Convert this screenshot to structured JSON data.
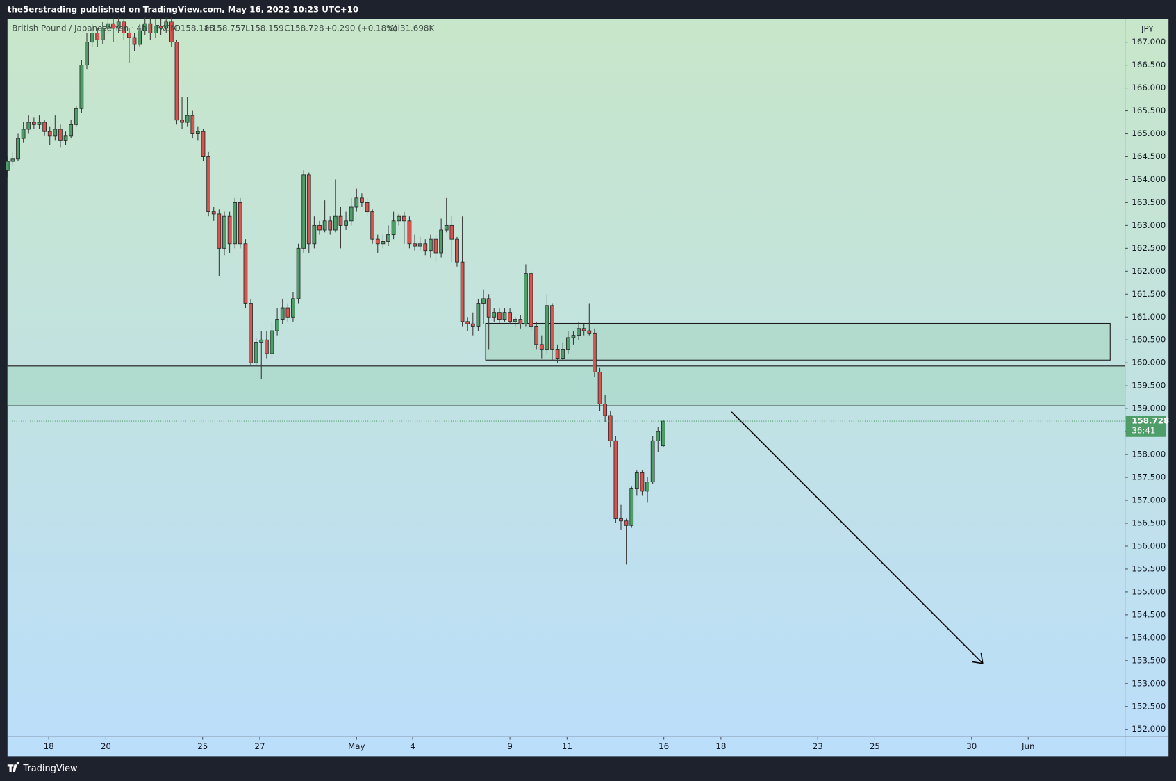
{
  "publisher": "the5erstrading published on TradingView.com, May 16, 2022 10:23 UTC+10",
  "brand": "TradingView",
  "chart_data": {
    "type": "candlestick",
    "title": "British Pound / Japanese Yen · 4h · FXCM",
    "ohlc_labels": [
      "O158.188",
      "H158.757",
      "L158.159",
      "C158.728",
      "+0.290 (+0.18%)",
      "Vol31.698K"
    ],
    "currency": "JPY",
    "countdown": "36:41",
    "up_color": "#4f9e69",
    "down_color": "#d9534f",
    "grid": false,
    "open": [
      164.2,
      164.4,
      164.45,
      164.9,
      165.1,
      165.25,
      165.2,
      165.25,
      165.05,
      164.95,
      165.1,
      164.85,
      164.95,
      165.2,
      165.55,
      166.5,
      167.0,
      167.2,
      167.05,
      167.3,
      167.4,
      167.3,
      167.45,
      167.2,
      167.1,
      166.95,
      167.25,
      167.4,
      167.2,
      167.35,
      167.3,
      167.45,
      167.0,
      165.3,
      165.25,
      165.4,
      165.0,
      165.05,
      164.5,
      163.3,
      163.25,
      162.5,
      163.2,
      162.6,
      163.5,
      162.6,
      161.3,
      160.0,
      160.45,
      160.5,
      160.2,
      160.7,
      160.95,
      161.2,
      161.0,
      161.4,
      162.5,
      164.1,
      162.6,
      163.0,
      162.9,
      163.1,
      162.9,
      163.2,
      163.0,
      163.1,
      163.4,
      163.6,
      163.5,
      163.3,
      162.7,
      162.6,
      162.65,
      162.8,
      163.1,
      163.2,
      163.1,
      162.6,
      162.55,
      162.6,
      162.45,
      162.7,
      162.4,
      162.9,
      163.0,
      162.7,
      162.2,
      160.9,
      160.85,
      160.8,
      161.3,
      161.4,
      161.0,
      161.1,
      160.95,
      161.1,
      160.9,
      160.95,
      160.85,
      161.95,
      160.8,
      160.4,
      160.3,
      161.25,
      160.3,
      160.1,
      160.3,
      160.55,
      160.6,
      160.75,
      160.7,
      160.65,
      159.8,
      159.1,
      158.85,
      158.3,
      156.6,
      156.55,
      156.45,
      157.25,
      157.6,
      157.2,
      157.4,
      158.3,
      158.188
    ],
    "high": [
      164.5,
      164.6,
      165.0,
      165.25,
      165.4,
      165.35,
      165.4,
      165.3,
      165.15,
      165.4,
      165.2,
      165.05,
      165.3,
      165.6,
      166.6,
      167.2,
      167.4,
      167.3,
      167.45,
      167.55,
      167.55,
      167.55,
      167.55,
      167.3,
      167.2,
      167.4,
      167.55,
      167.55,
      167.5,
      167.5,
      167.55,
      167.55,
      167.05,
      165.8,
      165.8,
      165.5,
      165.15,
      165.1,
      164.6,
      163.4,
      163.35,
      163.3,
      163.3,
      163.6,
      163.6,
      162.7,
      161.4,
      160.55,
      160.7,
      160.7,
      160.9,
      161.2,
      161.4,
      161.3,
      161.55,
      162.6,
      164.2,
      164.15,
      163.2,
      163.1,
      163.55,
      163.2,
      164.0,
      163.4,
      163.3,
      163.6,
      163.8,
      163.7,
      163.6,
      163.35,
      162.8,
      162.8,
      163.0,
      163.3,
      163.25,
      163.3,
      163.2,
      162.8,
      162.75,
      162.7,
      162.8,
      162.8,
      163.15,
      163.6,
      163.2,
      162.75,
      163.2,
      161.0,
      161.1,
      161.4,
      161.6,
      161.5,
      161.2,
      161.2,
      161.2,
      161.2,
      161.0,
      161.05,
      162.15,
      162.0,
      160.9,
      160.6,
      161.5,
      161.3,
      160.4,
      160.45,
      160.7,
      160.7,
      160.9,
      160.85,
      161.3,
      160.75,
      159.9,
      159.3,
      158.95,
      158.4,
      156.9,
      156.6,
      157.3,
      157.65,
      157.65,
      157.5,
      158.4,
      158.6,
      158.757
    ],
    "low": [
      164.05,
      164.3,
      164.4,
      164.8,
      165.0,
      165.1,
      165.1,
      164.95,
      164.75,
      164.85,
      164.7,
      164.75,
      164.9,
      165.15,
      165.45,
      166.4,
      166.9,
      166.9,
      166.95,
      167.2,
      167.0,
      167.2,
      167.05,
      166.55,
      166.8,
      166.9,
      167.15,
      167.05,
      167.1,
      167.15,
      167.2,
      166.9,
      165.2,
      165.1,
      165.15,
      164.9,
      164.85,
      164.4,
      163.2,
      163.1,
      161.9,
      162.35,
      162.4,
      162.5,
      162.5,
      161.2,
      159.95,
      159.95,
      159.65,
      160.1,
      160.1,
      160.6,
      160.85,
      160.9,
      160.9,
      161.3,
      162.4,
      162.4,
      162.5,
      162.8,
      162.85,
      162.8,
      162.85,
      162.5,
      162.9,
      163.0,
      163.3,
      163.4,
      163.2,
      162.6,
      162.4,
      162.5,
      162.55,
      162.7,
      163.0,
      162.6,
      162.5,
      162.45,
      162.45,
      162.35,
      162.3,
      162.2,
      162.3,
      162.85,
      162.2,
      162.1,
      160.8,
      160.7,
      160.6,
      160.7,
      160.85,
      160.3,
      160.9,
      160.85,
      160.9,
      160.85,
      160.8,
      160.75,
      160.8,
      160.7,
      160.3,
      160.1,
      160.2,
      160.05,
      160.0,
      160.05,
      160.2,
      160.4,
      160.5,
      160.6,
      160.6,
      159.7,
      158.95,
      158.7,
      158.15,
      156.5,
      156.35,
      155.6,
      156.4,
      157.1,
      157.1,
      156.95,
      157.35,
      158.05,
      158.159
    ],
    "close": [
      164.4,
      164.45,
      164.9,
      165.1,
      165.25,
      165.2,
      165.25,
      165.05,
      164.95,
      165.1,
      164.85,
      164.95,
      165.2,
      165.55,
      166.5,
      167.0,
      167.2,
      167.05,
      167.3,
      167.4,
      167.3,
      167.45,
      167.2,
      167.1,
      166.95,
      167.25,
      167.4,
      167.2,
      167.35,
      167.3,
      167.45,
      167.0,
      165.3,
      165.25,
      165.4,
      165.0,
      165.05,
      164.5,
      163.3,
      163.25,
      162.5,
      163.2,
      162.6,
      163.5,
      162.6,
      161.3,
      160.0,
      160.45,
      160.5,
      160.2,
      160.7,
      160.95,
      161.2,
      161.0,
      161.4,
      162.5,
      164.1,
      162.6,
      163.0,
      162.9,
      163.1,
      162.9,
      163.2,
      163.0,
      163.1,
      163.4,
      163.6,
      163.5,
      163.3,
      162.7,
      162.6,
      162.65,
      162.8,
      163.1,
      163.2,
      163.1,
      162.6,
      162.55,
      162.6,
      162.45,
      162.7,
      162.4,
      162.9,
      163.0,
      162.7,
      162.2,
      160.9,
      160.85,
      160.8,
      161.3,
      161.4,
      161.0,
      161.1,
      160.95,
      161.1,
      160.9,
      160.95,
      160.85,
      161.95,
      160.8,
      160.4,
      160.3,
      161.25,
      160.3,
      160.1,
      160.3,
      160.55,
      160.6,
      160.75,
      160.7,
      160.65,
      159.8,
      159.1,
      158.85,
      158.3,
      156.6,
      156.55,
      156.45,
      157.25,
      157.6,
      157.2,
      157.4,
      158.3,
      158.5,
      158.728
    ],
    "xlim": [
      0,
      211.3
    ],
    "xticks": [
      {
        "value": 7.8,
        "label": "18"
      },
      {
        "value": 18.6,
        "label": "20"
      },
      {
        "value": 36.9,
        "label": "25"
      },
      {
        "value": 47.7,
        "label": "27"
      },
      {
        "value": 66.0,
        "label": "May"
      },
      {
        "value": 76.6,
        "label": "4"
      },
      {
        "value": 95.0,
        "label": "9"
      },
      {
        "value": 105.8,
        "label": "11"
      },
      {
        "value": 124.1,
        "label": "16"
      },
      {
        "value": 134.9,
        "label": "18"
      },
      {
        "value": 153.2,
        "label": "23"
      },
      {
        "value": 164.0,
        "label": "25"
      },
      {
        "value": 182.3,
        "label": "30"
      },
      {
        "value": 193.0,
        "label": "Jun"
      }
    ],
    "ylim": [
      151.84,
      167.51
    ],
    "yticks": [
      {
        "value": 152,
        "label": "152.000"
      },
      {
        "value": 152.5,
        "label": "152.500"
      },
      {
        "value": 153,
        "label": "153.000"
      },
      {
        "value": 153.5,
        "label": "153.500"
      },
      {
        "value": 154,
        "label": "154.000"
      },
      {
        "value": 154.5,
        "label": "154.500"
      },
      {
        "value": 155,
        "label": "155.000"
      },
      {
        "value": 155.5,
        "label": "155.500"
      },
      {
        "value": 156,
        "label": "156.000"
      },
      {
        "value": 156.5,
        "label": "156.500"
      },
      {
        "value": 157,
        "label": "157.000"
      },
      {
        "value": 157.5,
        "label": "157.500"
      },
      {
        "value": 158,
        "label": "158.000"
      },
      {
        "value": 158.5,
        "label": "158.500"
      },
      {
        "value": 159,
        "label": "159.000"
      },
      {
        "value": 159.5,
        "label": "159.500"
      },
      {
        "value": 160,
        "label": "160.000"
      },
      {
        "value": 160.5,
        "label": "160.500"
      },
      {
        "value": 161,
        "label": "161.000"
      },
      {
        "value": 161.5,
        "label": "161.500"
      },
      {
        "value": 162,
        "label": "162.000"
      },
      {
        "value": 162.5,
        "label": "162.500"
      },
      {
        "value": 163,
        "label": "163.000"
      },
      {
        "value": 163.5,
        "label": "163.500"
      },
      {
        "value": 164,
        "label": "164.000"
      },
      {
        "value": 164.5,
        "label": "164.500"
      },
      {
        "value": 165,
        "label": "165.000"
      },
      {
        "value": 165.5,
        "label": "165.500"
      },
      {
        "value": 166,
        "label": "166.000"
      },
      {
        "value": 166.5,
        "label": "166.500"
      },
      {
        "value": 167,
        "label": "167.000"
      }
    ],
    "drawings": [
      {
        "type": "rectangle",
        "x": [
          90.4,
          208.5
        ],
        "y": [
          160.06,
          160.86
        ],
        "color": "#a5d6c0"
      },
      {
        "type": "band",
        "y": [
          159.06,
          159.93
        ],
        "color": "#a8d8c8"
      },
      {
        "type": "arrow",
        "x": [
          136.9,
          184.4
        ],
        "y": [
          158.93,
          153.44
        ],
        "color": "#000000"
      }
    ]
  }
}
